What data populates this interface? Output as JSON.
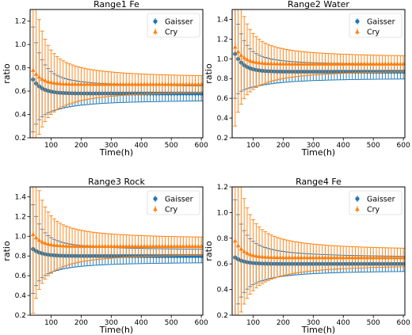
{
  "figure": {
    "legend_labels": [
      "Gaisser",
      "Cry"
    ],
    "colors": {
      "gaisser": "#1f77b4",
      "cry": "#ff7f0e"
    }
  },
  "chart_data": [
    {
      "type": "scatter",
      "title": "Range1 Fe",
      "xlabel": "Time(h)",
      "ylabel": "ratio",
      "xlim": [
        30,
        605
      ],
      "ylim": [
        0.2,
        1.3
      ],
      "xticks": [
        100,
        200,
        300,
        400,
        500,
        600
      ],
      "yticks": [
        0.2,
        0.4,
        0.6,
        0.8,
        1.0,
        1.2
      ],
      "legend_position": "top-right",
      "x_start": 40,
      "x_step": 10,
      "x_end": 600,
      "series": [
        {
          "name": "Gaisser",
          "color": "#1f77b4",
          "marker": "circle",
          "y_start": 0.7,
          "y_end": 0.58,
          "err_start": 0.9,
          "err_end": 0.11
        },
        {
          "name": "Cry",
          "color": "#ff7f0e",
          "marker": "triangle",
          "y_start": 0.78,
          "y_end": 0.66,
          "err_start": 1.6,
          "err_end": 0.11
        }
      ]
    },
    {
      "type": "scatter",
      "title": "Range2 Water",
      "xlabel": "Time(h)",
      "ylabel": "ratio",
      "xlim": [
        30,
        605
      ],
      "ylim": [
        0.2,
        1.5
      ],
      "xticks": [
        100,
        200,
        300,
        400,
        500,
        600
      ],
      "yticks": [
        0.2,
        0.4,
        0.6,
        0.8,
        1.0,
        1.2,
        1.4
      ],
      "legend_position": "top-right",
      "x_start": 40,
      "x_step": 10,
      "x_end": 600,
      "series": [
        {
          "name": "Gaisser",
          "color": "#1f77b4",
          "marker": "circle",
          "y_start": 1.05,
          "y_end": 0.87,
          "err_start": 0.9,
          "err_end": 0.13
        },
        {
          "name": "Cry",
          "color": "#ff7f0e",
          "marker": "triangle",
          "y_start": 1.12,
          "y_end": 0.95,
          "err_start": 1.6,
          "err_end": 0.13
        }
      ]
    },
    {
      "type": "scatter",
      "title": "Range3 Rock",
      "xlabel": "Time(h)",
      "ylabel": "ratio",
      "xlim": [
        30,
        605
      ],
      "ylim": [
        0.2,
        1.5
      ],
      "xticks": [
        100,
        200,
        300,
        400,
        500,
        600
      ],
      "yticks": [
        0.2,
        0.4,
        0.6,
        0.8,
        1.0,
        1.2,
        1.4
      ],
      "legend_position": "top-right",
      "x_start": 40,
      "x_step": 10,
      "x_end": 600,
      "series": [
        {
          "name": "Gaisser",
          "color": "#1f77b4",
          "marker": "circle",
          "y_start": 0.87,
          "y_end": 0.8,
          "err_start": 0.9,
          "err_end": 0.12
        },
        {
          "name": "Cry",
          "color": "#ff7f0e",
          "marker": "triangle",
          "y_start": 1.02,
          "y_end": 0.9,
          "err_start": 1.6,
          "err_end": 0.15
        }
      ]
    },
    {
      "type": "scatter",
      "title": "Range4 Fe",
      "xlabel": "Time(h)",
      "ylabel": "ratio",
      "xlim": [
        30,
        605
      ],
      "ylim": [
        0.2,
        1.2
      ],
      "xticks": [
        100,
        200,
        300,
        400,
        500,
        600
      ],
      "yticks": [
        0.2,
        0.4,
        0.6,
        0.8,
        1.0,
        1.2
      ],
      "legend_position": "top-right",
      "x_start": 40,
      "x_step": 10,
      "x_end": 600,
      "series": [
        {
          "name": "Gaisser",
          "color": "#1f77b4",
          "marker": "circle",
          "y_start": 0.65,
          "y_end": 0.6,
          "err_start": 0.9,
          "err_end": 0.1
        },
        {
          "name": "Cry",
          "color": "#ff7f0e",
          "marker": "triangle",
          "y_start": 0.78,
          "y_end": 0.65,
          "err_start": 1.6,
          "err_end": 0.11
        }
      ]
    }
  ]
}
